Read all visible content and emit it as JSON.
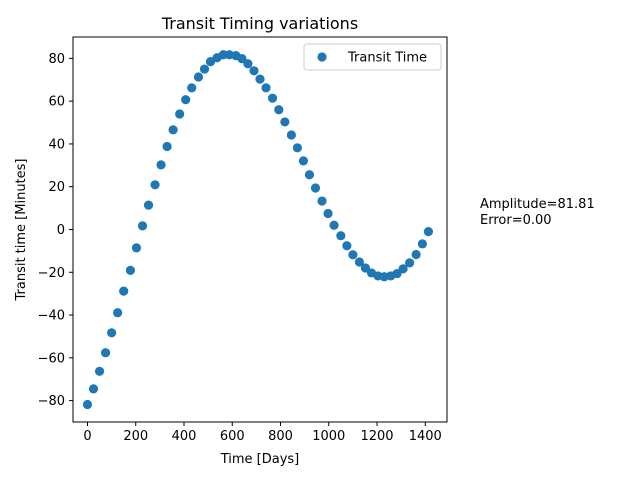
{
  "chart_data": {
    "type": "scatter",
    "title": "Transit Timing variations",
    "xlabel": "Time [Days]",
    "ylabel": "Transit time [Minutes]",
    "xlim": [
      -60,
      1490
    ],
    "ylim": [
      -90,
      90
    ],
    "xticks": [
      0,
      200,
      400,
      600,
      800,
      1000,
      1200,
      1400
    ],
    "yticks": [
      -80,
      -60,
      -40,
      -20,
      0,
      20,
      40,
      60,
      80
    ],
    "grid": false,
    "legend": "top-right",
    "series": [
      {
        "name": "Transit Time",
        "color": "#1f77b4",
        "x": [
          0,
          25,
          50,
          75,
          100,
          125,
          150,
          178,
          203,
          228,
          253,
          280,
          305,
          330,
          355,
          382,
          407,
          432,
          460,
          485,
          510,
          537,
          563,
          588,
          615,
          640,
          665,
          690,
          715,
          740,
          767,
          793,
          818,
          845,
          870,
          895,
          920,
          945,
          972,
          997,
          1022,
          1050,
          1075,
          1100,
          1127,
          1152,
          1177,
          1204,
          1230,
          1257,
          1283,
          1308,
          1335,
          1362,
          1388,
          1413
        ],
        "y": [
          -81.8,
          -74.5,
          -66.3,
          -57.6,
          -48.3,
          -38.9,
          -28.8,
          -19.1,
          -8.6,
          1.7,
          11.4,
          20.9,
          30.2,
          38.8,
          46.6,
          54.0,
          60.7,
          66.2,
          71.3,
          75.0,
          78.5,
          80.3,
          81.7,
          81.7,
          81.3,
          79.9,
          77.5,
          74.2,
          70.3,
          66.2,
          61.4,
          56.0,
          50.3,
          44.2,
          38.2,
          32.1,
          25.6,
          19.4,
          13.3,
          7.5,
          2.0,
          -2.9,
          -7.6,
          -11.8,
          -15.2,
          -18.0,
          -20.3,
          -21.7,
          -22.1,
          -21.7,
          -20.6,
          -18.4,
          -15.6,
          -11.7,
          -6.7,
          -1.0
        ]
      }
    ]
  },
  "annotations": {
    "amplitude": "Amplitude=81.81",
    "error": "Error=0.00"
  }
}
